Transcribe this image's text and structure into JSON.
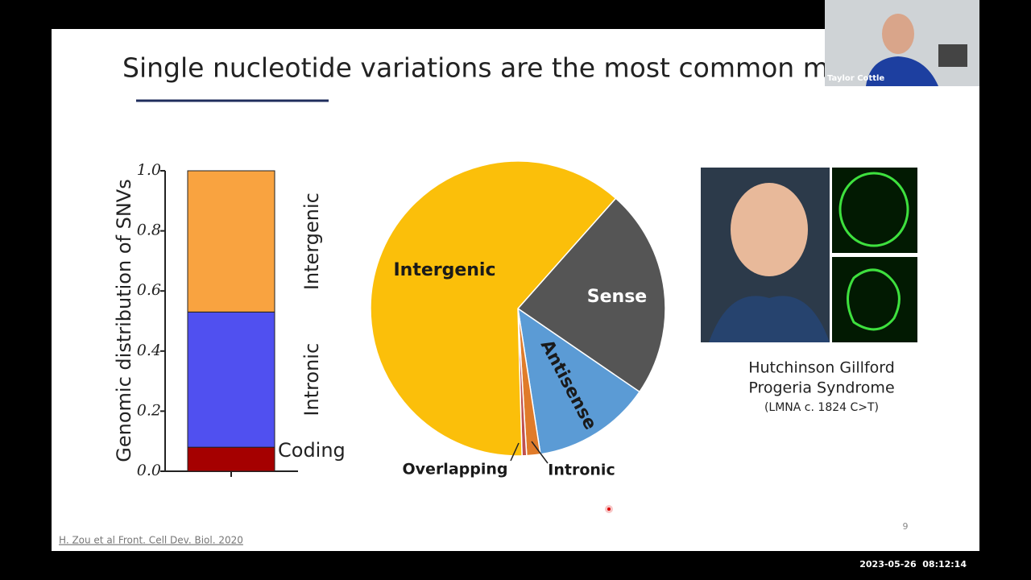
{
  "slide": {
    "title": "Single nucleotide variations are the most common mutations",
    "bar_chart": {
      "type": "stacked-bar",
      "ylabel": "Genomic distribution of SNVs",
      "ylim": [
        0,
        1
      ],
      "yticks": [
        {
          "value": 0,
          "label": "0.0"
        },
        {
          "value": 0.2,
          "label": "0.2"
        },
        {
          "value": 0.4,
          "label": "0.4"
        },
        {
          "value": 0.6,
          "label": "0.6"
        },
        {
          "value": 0.8,
          "label": "0.8"
        },
        {
          "value": 1,
          "label": "1.0"
        }
      ],
      "series": [
        {
          "name": "Coding",
          "color": "#a50000",
          "values": [
            0.08
          ]
        },
        {
          "name": "Intronic",
          "color": "#5050f0",
          "values": [
            0.45
          ]
        },
        {
          "name": "Intergenic",
          "color": "#f9a340",
          "values": [
            0.47
          ]
        }
      ]
    },
    "pie_chart": {
      "type": "pie",
      "categories": [
        "Sense",
        "Antisense",
        "Intronic",
        "Overlapping",
        "Intergenic"
      ],
      "values": [
        23,
        13,
        1.5,
        0.5,
        62
      ],
      "colors": [
        "#555555",
        "#5b9bd5",
        "#e07b2a",
        "#c0504d",
        "#fbbf0a"
      ]
    },
    "caption": [
      "Hutchinson Gillford",
      "Progeria Syndrome",
      "(LMNA c. 1824 C>T)"
    ],
    "page_number": "9",
    "citation": "H. Zou et al Front. Cell Dev. Biol. 2020"
  },
  "webcam": {
    "name": "Taylor Cottle"
  },
  "timestamp": "2023-05-26  08:12:14"
}
